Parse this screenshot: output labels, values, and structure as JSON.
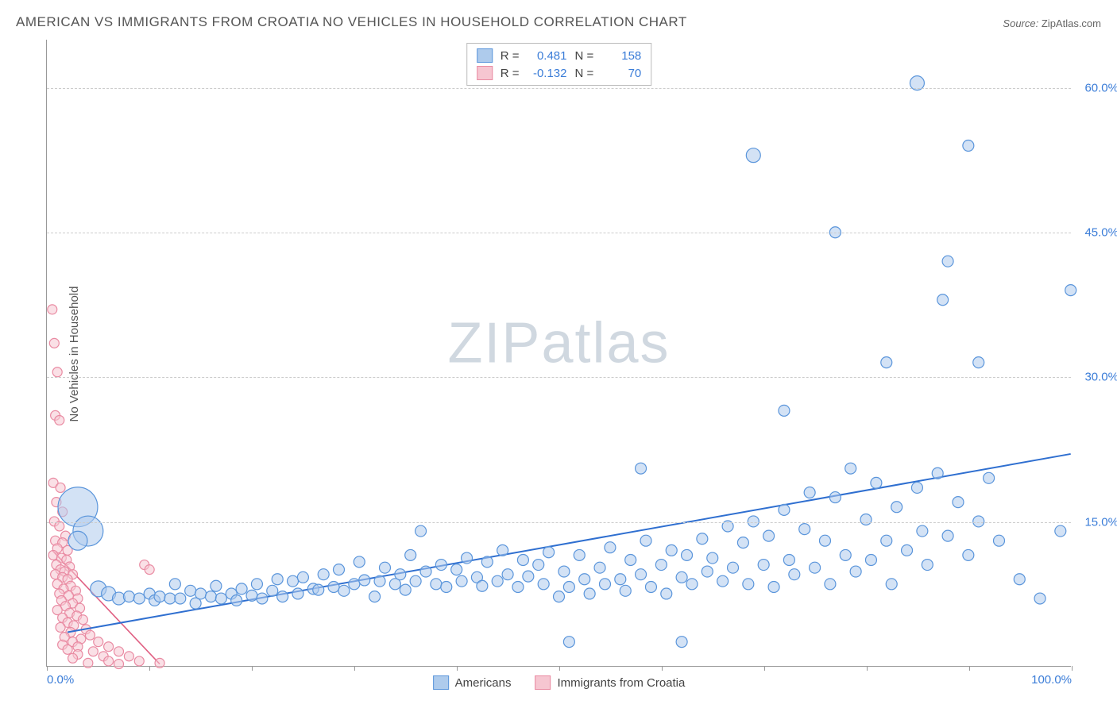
{
  "title": "AMERICAN VS IMMIGRANTS FROM CROATIA NO VEHICLES IN HOUSEHOLD CORRELATION CHART",
  "source_label": "Source:",
  "source_value": "ZipAtlas.com",
  "watermark_a": "ZIP",
  "watermark_b": "atlas",
  "ylabel": "No Vehicles in Household",
  "chart": {
    "type": "scatter",
    "xlim": [
      0,
      100
    ],
    "ylim": [
      0,
      65
    ],
    "yticks": [
      15,
      30,
      45,
      60
    ],
    "ytick_labels": [
      "15.0%",
      "30.0%",
      "45.0%",
      "60.0%"
    ],
    "xticks": [
      0,
      10,
      20,
      30,
      40,
      50,
      60,
      70,
      80,
      90,
      100
    ],
    "xtick_labels_shown": {
      "0": "0.0%",
      "100": "100.0%"
    },
    "background_color": "#ffffff",
    "grid_color": "#cccccc",
    "grid_dash": true,
    "legend_stats": [
      {
        "swatch_fill": "#aecbec",
        "swatch_border": "#5a95db",
        "r": "0.481",
        "n": "158"
      },
      {
        "swatch_fill": "#f6c6d1",
        "swatch_border": "#e98aa2",
        "r": "-0.132",
        "n": "70"
      }
    ],
    "bottom_legend": [
      {
        "swatch_fill": "#aecbec",
        "swatch_border": "#5a95db",
        "label": "Americans"
      },
      {
        "swatch_fill": "#f6c6d1",
        "swatch_border": "#e98aa2",
        "label": "Immigrants from Croatia"
      }
    ],
    "series": [
      {
        "name": "americans",
        "fill": "#aecbec",
        "stroke": "#5a95db",
        "fill_opacity": 0.55,
        "stroke_width": 1.2,
        "default_r": 7,
        "trend_line": {
          "x1": 2,
          "y1": 3.5,
          "x2": 100,
          "y2": 22,
          "color": "#2f6fd0",
          "width": 2
        },
        "points": [
          {
            "x": 3,
            "y": 16.5,
            "r": 25
          },
          {
            "x": 4,
            "y": 14,
            "r": 19
          },
          {
            "x": 3,
            "y": 13,
            "r": 12
          },
          {
            "x": 5,
            "y": 8,
            "r": 10
          },
          {
            "x": 6,
            "y": 7.5,
            "r": 9
          },
          {
            "x": 7,
            "y": 7,
            "r": 8
          },
          {
            "x": 8,
            "y": 7.2
          },
          {
            "x": 9,
            "y": 7
          },
          {
            "x": 10,
            "y": 7.5
          },
          {
            "x": 10.5,
            "y": 6.8
          },
          {
            "x": 11,
            "y": 7.2
          },
          {
            "x": 12,
            "y": 7
          },
          {
            "x": 12.5,
            "y": 8.5
          },
          {
            "x": 13,
            "y": 7
          },
          {
            "x": 14,
            "y": 7.8
          },
          {
            "x": 14.5,
            "y": 6.5
          },
          {
            "x": 15,
            "y": 7.5
          },
          {
            "x": 16,
            "y": 7.2
          },
          {
            "x": 16.5,
            "y": 8.3
          },
          {
            "x": 17,
            "y": 7
          },
          {
            "x": 18,
            "y": 7.5
          },
          {
            "x": 18.5,
            "y": 6.8
          },
          {
            "x": 19,
            "y": 8
          },
          {
            "x": 20,
            "y": 7.3
          },
          {
            "x": 20.5,
            "y": 8.5
          },
          {
            "x": 21,
            "y": 7
          },
          {
            "x": 22,
            "y": 7.8
          },
          {
            "x": 22.5,
            "y": 9
          },
          {
            "x": 23,
            "y": 7.2
          },
          {
            "x": 24,
            "y": 8.8
          },
          {
            "x": 24.5,
            "y": 7.5
          },
          {
            "x": 25,
            "y": 9.2
          },
          {
            "x": 26,
            "y": 8
          },
          {
            "x": 26.5,
            "y": 7.9
          },
          {
            "x": 27,
            "y": 9.5
          },
          {
            "x": 28,
            "y": 8.2
          },
          {
            "x": 28.5,
            "y": 10
          },
          {
            "x": 29,
            "y": 7.8
          },
          {
            "x": 30,
            "y": 8.5
          },
          {
            "x": 30.5,
            "y": 10.8
          },
          {
            "x": 31,
            "y": 8.9
          },
          {
            "x": 32,
            "y": 7.2
          },
          {
            "x": 32.5,
            "y": 8.8
          },
          {
            "x": 33,
            "y": 10.2
          },
          {
            "x": 34,
            "y": 8.5
          },
          {
            "x": 34.5,
            "y": 9.5
          },
          {
            "x": 35,
            "y": 7.9
          },
          {
            "x": 35.5,
            "y": 11.5
          },
          {
            "x": 36,
            "y": 8.8
          },
          {
            "x": 36.5,
            "y": 14
          },
          {
            "x": 37,
            "y": 9.8
          },
          {
            "x": 38,
            "y": 8.5
          },
          {
            "x": 38.5,
            "y": 10.5
          },
          {
            "x": 39,
            "y": 8.2
          },
          {
            "x": 40,
            "y": 10
          },
          {
            "x": 40.5,
            "y": 8.8
          },
          {
            "x": 41,
            "y": 11.2
          },
          {
            "x": 42,
            "y": 9.2
          },
          {
            "x": 42.5,
            "y": 8.3
          },
          {
            "x": 43,
            "y": 10.8
          },
          {
            "x": 44,
            "y": 8.8
          },
          {
            "x": 44.5,
            "y": 12
          },
          {
            "x": 45,
            "y": 9.5
          },
          {
            "x": 46,
            "y": 8.2
          },
          {
            "x": 46.5,
            "y": 11
          },
          {
            "x": 47,
            "y": 9.3
          },
          {
            "x": 48,
            "y": 10.5
          },
          {
            "x": 48.5,
            "y": 8.5
          },
          {
            "x": 49,
            "y": 11.8
          },
          {
            "x": 50,
            "y": 7.2
          },
          {
            "x": 50.5,
            "y": 9.8
          },
          {
            "x": 51,
            "y": 8.2
          },
          {
            "x": 52,
            "y": 11.5
          },
          {
            "x": 52.5,
            "y": 9
          },
          {
            "x": 53,
            "y": 7.5
          },
          {
            "x": 51,
            "y": 2.5
          },
          {
            "x": 54,
            "y": 10.2
          },
          {
            "x": 54.5,
            "y": 8.5
          },
          {
            "x": 55,
            "y": 12.3
          },
          {
            "x": 56,
            "y": 9
          },
          {
            "x": 56.5,
            "y": 7.8
          },
          {
            "x": 57,
            "y": 11
          },
          {
            "x": 58,
            "y": 9.5
          },
          {
            "x": 58.5,
            "y": 13
          },
          {
            "x": 59,
            "y": 8.2
          },
          {
            "x": 60,
            "y": 10.5
          },
          {
            "x": 60.5,
            "y": 7.5
          },
          {
            "x": 58,
            "y": 20.5
          },
          {
            "x": 61,
            "y": 12
          },
          {
            "x": 62,
            "y": 9.2
          },
          {
            "x": 62.5,
            "y": 11.5
          },
          {
            "x": 63,
            "y": 8.5
          },
          {
            "x": 62,
            "y": 2.5
          },
          {
            "x": 64,
            "y": 13.2
          },
          {
            "x": 64.5,
            "y": 9.8
          },
          {
            "x": 65,
            "y": 11.2
          },
          {
            "x": 66,
            "y": 8.8
          },
          {
            "x": 66.5,
            "y": 14.5
          },
          {
            "x": 67,
            "y": 10.2
          },
          {
            "x": 68,
            "y": 12.8
          },
          {
            "x": 68.5,
            "y": 8.5
          },
          {
            "x": 69,
            "y": 15
          },
          {
            "x": 70,
            "y": 10.5
          },
          {
            "x": 70.5,
            "y": 13.5
          },
          {
            "x": 71,
            "y": 8.2
          },
          {
            "x": 72,
            "y": 16.2
          },
          {
            "x": 72.5,
            "y": 11
          },
          {
            "x": 72,
            "y": 26.5
          },
          {
            "x": 73,
            "y": 9.5
          },
          {
            "x": 74,
            "y": 14.2
          },
          {
            "x": 74.5,
            "y": 18
          },
          {
            "x": 75,
            "y": 10.2
          },
          {
            "x": 69,
            "y": 53,
            "r": 9
          },
          {
            "x": 76,
            "y": 13
          },
          {
            "x": 76.5,
            "y": 8.5
          },
          {
            "x": 77,
            "y": 17.5
          },
          {
            "x": 78,
            "y": 11.5
          },
          {
            "x": 77,
            "y": 45
          },
          {
            "x": 78.5,
            "y": 20.5
          },
          {
            "x": 79,
            "y": 9.8
          },
          {
            "x": 80,
            "y": 15.2
          },
          {
            "x": 80.5,
            "y": 11
          },
          {
            "x": 81,
            "y": 19
          },
          {
            "x": 82,
            "y": 13
          },
          {
            "x": 82,
            "y": 31.5
          },
          {
            "x": 83,
            "y": 16.5
          },
          {
            "x": 82.5,
            "y": 8.5
          },
          {
            "x": 84,
            "y": 12
          },
          {
            "x": 85,
            "y": 18.5
          },
          {
            "x": 85.5,
            "y": 14
          },
          {
            "x": 86,
            "y": 10.5
          },
          {
            "x": 87,
            "y": 20
          },
          {
            "x": 85,
            "y": 60.5,
            "r": 9
          },
          {
            "x": 88,
            "y": 13.5
          },
          {
            "x": 87.5,
            "y": 38
          },
          {
            "x": 89,
            "y": 17
          },
          {
            "x": 88,
            "y": 42
          },
          {
            "x": 90,
            "y": 11.5
          },
          {
            "x": 90,
            "y": 54
          },
          {
            "x": 91,
            "y": 15
          },
          {
            "x": 91,
            "y": 31.5
          },
          {
            "x": 92,
            "y": 19.5
          },
          {
            "x": 93,
            "y": 13
          },
          {
            "x": 97,
            "y": 7
          },
          {
            "x": 100,
            "y": 39
          },
          {
            "x": 99,
            "y": 14
          },
          {
            "x": 95,
            "y": 9
          }
        ]
      },
      {
        "name": "croatia",
        "fill": "#f6c6d1",
        "stroke": "#e98aa2",
        "fill_opacity": 0.55,
        "stroke_width": 1.2,
        "default_r": 6,
        "trend_line": {
          "x1": 0.5,
          "y1": 12,
          "x2": 11,
          "y2": 0.2,
          "color": "#e05f82",
          "width": 1.6
        },
        "points": [
          {
            "x": 0.5,
            "y": 37
          },
          {
            "x": 0.7,
            "y": 33.5
          },
          {
            "x": 1,
            "y": 30.5
          },
          {
            "x": 0.8,
            "y": 26
          },
          {
            "x": 1.2,
            "y": 25.5
          },
          {
            "x": 0.6,
            "y": 19
          },
          {
            "x": 1.3,
            "y": 18.5
          },
          {
            "x": 0.9,
            "y": 17
          },
          {
            "x": 1.5,
            "y": 16
          },
          {
            "x": 0.7,
            "y": 15
          },
          {
            "x": 1.2,
            "y": 14.5
          },
          {
            "x": 1.8,
            "y": 13.5
          },
          {
            "x": 0.8,
            "y": 13
          },
          {
            "x": 1.5,
            "y": 12.8
          },
          {
            "x": 1,
            "y": 12.2
          },
          {
            "x": 2,
            "y": 12
          },
          {
            "x": 0.6,
            "y": 11.5
          },
          {
            "x": 1.4,
            "y": 11.2
          },
          {
            "x": 1.9,
            "y": 11
          },
          {
            "x": 0.9,
            "y": 10.5
          },
          {
            "x": 2.2,
            "y": 10.3
          },
          {
            "x": 1.3,
            "y": 10
          },
          {
            "x": 1.7,
            "y": 9.8
          },
          {
            "x": 0.8,
            "y": 9.5
          },
          {
            "x": 2.5,
            "y": 9.5
          },
          {
            "x": 1.5,
            "y": 9.2
          },
          {
            "x": 2,
            "y": 9
          },
          {
            "x": 1,
            "y": 8.5
          },
          {
            "x": 2.3,
            "y": 8.3
          },
          {
            "x": 1.6,
            "y": 8
          },
          {
            "x": 2.8,
            "y": 7.8
          },
          {
            "x": 1.2,
            "y": 7.5
          },
          {
            "x": 2.1,
            "y": 7.3
          },
          {
            "x": 3,
            "y": 7
          },
          {
            "x": 1.4,
            "y": 6.8
          },
          {
            "x": 2.5,
            "y": 6.5
          },
          {
            "x": 1.8,
            "y": 6.2
          },
          {
            "x": 3.2,
            "y": 6
          },
          {
            "x": 1,
            "y": 5.8
          },
          {
            "x": 2.2,
            "y": 5.5
          },
          {
            "x": 2.9,
            "y": 5.2
          },
          {
            "x": 1.5,
            "y": 5
          },
          {
            "x": 3.5,
            "y": 4.8
          },
          {
            "x": 2,
            "y": 4.5
          },
          {
            "x": 2.6,
            "y": 4.2
          },
          {
            "x": 1.3,
            "y": 4
          },
          {
            "x": 3.8,
            "y": 3.8
          },
          {
            "x": 2.3,
            "y": 3.5
          },
          {
            "x": 4.2,
            "y": 3.2
          },
          {
            "x": 1.7,
            "y": 3
          },
          {
            "x": 3.3,
            "y": 2.8
          },
          {
            "x": 2.5,
            "y": 2.5
          },
          {
            "x": 5,
            "y": 2.5
          },
          {
            "x": 1.5,
            "y": 2.2
          },
          {
            "x": 3,
            "y": 2
          },
          {
            "x": 6,
            "y": 2
          },
          {
            "x": 2,
            "y": 1.7
          },
          {
            "x": 4.5,
            "y": 1.5
          },
          {
            "x": 7,
            "y": 1.5
          },
          {
            "x": 3,
            "y": 1.2
          },
          {
            "x": 5.5,
            "y": 1
          },
          {
            "x": 8,
            "y": 1
          },
          {
            "x": 2.5,
            "y": 0.8
          },
          {
            "x": 9.5,
            "y": 10.5
          },
          {
            "x": 10,
            "y": 10
          },
          {
            "x": 6,
            "y": 0.5
          },
          {
            "x": 9,
            "y": 0.5
          },
          {
            "x": 4,
            "y": 0.3
          },
          {
            "x": 11,
            "y": 0.3
          },
          {
            "x": 7,
            "y": 0.2
          }
        ]
      }
    ]
  }
}
